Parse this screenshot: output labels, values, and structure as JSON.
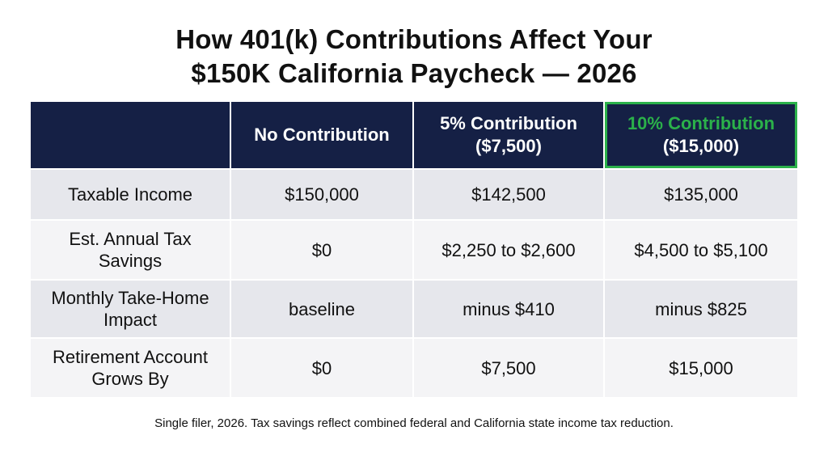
{
  "title": {
    "line1": "How 401(k) Contributions Affect Your",
    "line2": "$150K California Paycheck — 2026"
  },
  "colors": {
    "header_bg": "#152045",
    "highlight_accent": "#2bb14a",
    "row_dark": "#e6e7ec",
    "row_light": "#f4f4f6"
  },
  "table": {
    "headers": [
      {
        "line1": "",
        "line2": ""
      },
      {
        "line1": "No Contribution",
        "line2": ""
      },
      {
        "line1": "5% Contribution",
        "line2": "($7,500)"
      },
      {
        "line1": "10% Contribution",
        "line2": "($15,000)"
      }
    ],
    "rows": [
      {
        "label": "Taxable Income",
        "values": [
          "$150,000",
          "$142,500",
          "$135,000"
        ]
      },
      {
        "label": "Est. Annual Tax Savings",
        "values": [
          "$0",
          "$2,250 to $2,600",
          "$4,500 to $5,100"
        ]
      },
      {
        "label": "Monthly Take-Home Impact",
        "values": [
          "baseline",
          "minus $410",
          "minus $825"
        ]
      },
      {
        "label": "Retirement Account Grows By",
        "values": [
          "$0",
          "$7,500",
          "$15,000"
        ]
      }
    ]
  },
  "footnote": "Single filer, 2026. Tax savings reflect combined federal and California state income tax reduction."
}
